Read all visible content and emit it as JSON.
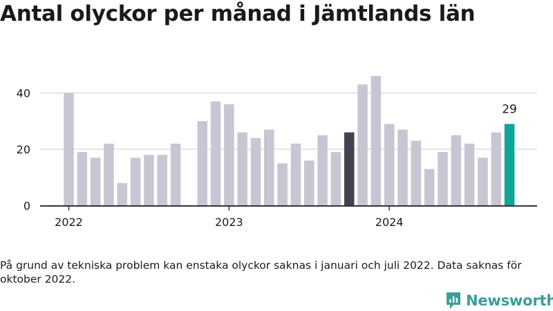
{
  "title": "Antal olyckor per månad i Jämtlands län",
  "note": "På grund av tekniska problem kan enstaka olyckor saknas i januari och juli 2022. Data saknas för oktober 2022.",
  "brand": "Newsworthy",
  "colors": {
    "bar_default": "#c8c6d2",
    "bar_previous_year": "#44424f",
    "bar_latest": "#0ea59a",
    "axis": "#333333",
    "grid": "#dddddd",
    "text": "#1a1a1a",
    "brand": "#3a9e9a"
  },
  "chart_data": {
    "type": "bar",
    "x": [
      "2022-01",
      "2022-02",
      "2022-03",
      "2022-04",
      "2022-05",
      "2022-06",
      "2022-07",
      "2022-08",
      "2022-09",
      "2022-10",
      "2022-11",
      "2022-12",
      "2023-01",
      "2023-02",
      "2023-03",
      "2023-04",
      "2023-05",
      "2023-06",
      "2023-07",
      "2023-08",
      "2023-09",
      "2023-10",
      "2023-11",
      "2023-12",
      "2024-01",
      "2024-02",
      "2024-03",
      "2024-04",
      "2024-05",
      "2024-06",
      "2024-07",
      "2024-08",
      "2024-09",
      "2024-10"
    ],
    "values": [
      40,
      19,
      17,
      22,
      8,
      17,
      18,
      18,
      22,
      null,
      30,
      37,
      36,
      26,
      24,
      27,
      15,
      22,
      16,
      25,
      19,
      26,
      43,
      46,
      29,
      27,
      23,
      13,
      19,
      25,
      22,
      17,
      26,
      29
    ],
    "highlight_previous": "2023-10",
    "highlight_latest": "2024-10",
    "latest_label": "29",
    "x_ticks": [
      {
        "x": "2022-01",
        "label": "2022"
      },
      {
        "x": "2023-01",
        "label": "2023"
      },
      {
        "x": "2024-01",
        "label": "2024"
      }
    ],
    "y_ticks": [
      0,
      20,
      40
    ],
    "ylim": [
      0,
      50
    ],
    "grid": true
  }
}
